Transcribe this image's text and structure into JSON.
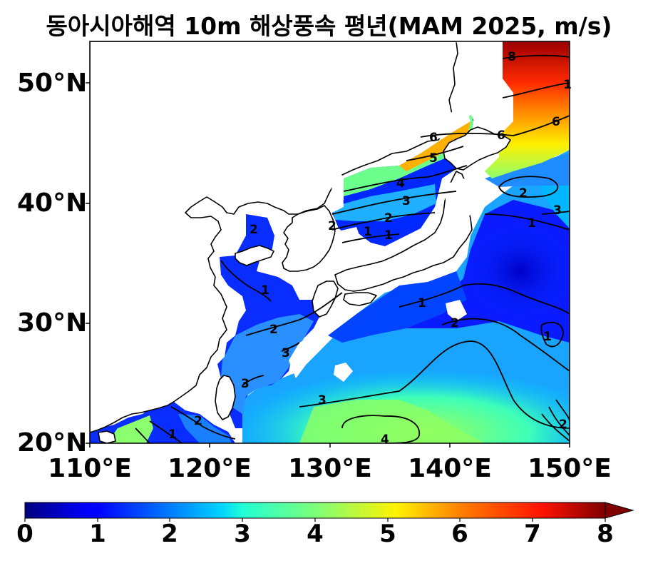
{
  "title": "동아시아해역 10m 해상풍속 평년(MAM 2025, m/s)",
  "y_ticks": [
    "50°N",
    "40°N",
    "30°N",
    "20°N"
  ],
  "x_ticks": [
    "110°E",
    "120°E",
    "130°E",
    "140°E",
    "150°E"
  ],
  "colorbar_ticks": [
    "0",
    "1",
    "2",
    "3",
    "4",
    "5",
    "6",
    "7",
    "8"
  ],
  "contour_labels": [
    "8",
    "1",
    "6",
    "6",
    "6",
    "5",
    "4",
    "3",
    "2",
    "2",
    "2",
    "1",
    "3",
    "1",
    "2",
    "2",
    "1",
    "1",
    "2",
    "3",
    "3",
    "3",
    "4",
    "2",
    "1",
    "1",
    "1",
    "2"
  ],
  "chart_data": {
    "type": "heatmap",
    "title": "동아시아해역 10m 해상풍속 평년(MAM 2025, m/s)",
    "colormap": "jet",
    "color_range": [
      0,
      8
    ],
    "colorbar_extend": "max",
    "lon_range": [
      110,
      150
    ],
    "lat_range": [
      20,
      53.5
    ],
    "contour_levels": [
      1,
      2,
      3,
      4,
      5,
      6,
      7,
      8
    ]
  }
}
